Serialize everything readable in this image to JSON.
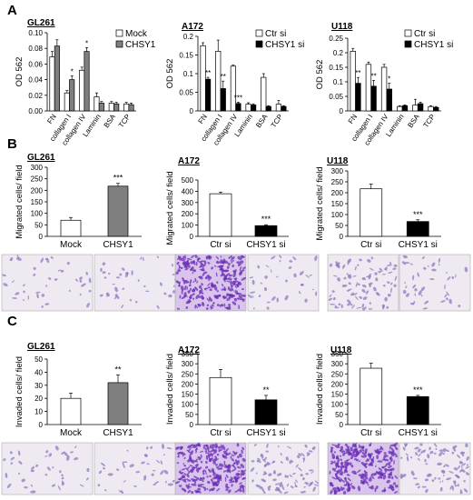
{
  "colors": {
    "white_bar": "#ffffff",
    "gray_bar": "#7f7f7f",
    "black_bar": "#000000",
    "stain_bg": "#eae3ef",
    "stain_light": "#8f7bc0",
    "stain_dark": "#6a2fb6"
  },
  "panel_letters": [
    "A",
    "B",
    "C"
  ],
  "chart_data": [
    {
      "id": "A-GL261",
      "type": "bar",
      "title": "GL261",
      "ylabel": "OD 562",
      "ylim": [
        0,
        0.1
      ],
      "yticks": [
        "0.00",
        "0.02",
        "0.04",
        "0.06",
        "0.08",
        "0.10"
      ],
      "categories": [
        "FN",
        "collagen I",
        "collagen IV",
        "Laminin",
        "BSA",
        "TCP"
      ],
      "series": [
        {
          "name": "Mock",
          "style": "white",
          "values": [
            0.069,
            0.023,
            0.052,
            0.018,
            0.01,
            0.009
          ],
          "errors": [
            0.007,
            0.003,
            0.004,
            0.005,
            0.002,
            0.002
          ]
        },
        {
          "name": "CHSY1",
          "style": "gray",
          "values": [
            0.083,
            0.04,
            0.076,
            0.01,
            0.009,
            0.008
          ],
          "errors": [
            0.008,
            0.005,
            0.005,
            0.002,
            0.002,
            0.002
          ]
        }
      ],
      "stars": [
        "",
        "*",
        "*",
        "",
        "",
        ""
      ],
      "legend": "top-right"
    },
    {
      "id": "A-A172",
      "type": "bar",
      "title": "A172",
      "ylabel": "OD 562",
      "ylim": [
        0,
        0.2
      ],
      "yticks": [
        "0",
        "0.05",
        "0.1",
        "0.15",
        "0.2"
      ],
      "categories": [
        "FN",
        "collagen I",
        "collagen IV",
        "Laminin",
        "BSA",
        "TCP"
      ],
      "series": [
        {
          "name": "Ctr si",
          "style": "white",
          "values": [
            0.175,
            0.16,
            0.12,
            0.018,
            0.09,
            0.018
          ],
          "errors": [
            0.008,
            0.03,
            0.003,
            0.004,
            0.01,
            0.01
          ]
        },
        {
          "name": "CHSY1 si",
          "style": "black",
          "values": [
            0.085,
            0.06,
            0.02,
            0.016,
            0.012,
            0.012
          ],
          "errors": [
            0.005,
            0.02,
            0.003,
            0.003,
            0.002,
            0.002
          ]
        }
      ],
      "stars": [
        "**",
        "**",
        "***",
        "",
        "",
        ""
      ],
      "legend": "top-right"
    },
    {
      "id": "A-U118",
      "type": "bar",
      "title": "U118",
      "ylabel": "OD 562",
      "ylim": [
        0,
        0.25
      ],
      "yticks": [
        "0",
        "0.05",
        "0.1",
        "0.15",
        "0.2",
        "0.25"
      ],
      "categories": [
        "FN",
        "collagen I",
        "collagen IV",
        "Laminin",
        "BSA",
        "TCP"
      ],
      "series": [
        {
          "name": "Ctr si",
          "style": "white",
          "values": [
            0.205,
            0.16,
            0.15,
            0.015,
            0.02,
            0.015
          ],
          "errors": [
            0.01,
            0.008,
            0.01,
            0.003,
            0.02,
            0.003
          ]
        },
        {
          "name": "CHSY1 si",
          "style": "black",
          "values": [
            0.095,
            0.085,
            0.075,
            0.018,
            0.025,
            0.012
          ],
          "errors": [
            0.02,
            0.02,
            0.02,
            0.003,
            0.005,
            0.003
          ]
        }
      ],
      "stars": [
        "**",
        "**",
        "*",
        "",
        "",
        ""
      ],
      "legend": "top-right"
    },
    {
      "id": "B-GL261",
      "type": "bar",
      "title": "GL261",
      "ylabel": "Migrated cells/ field",
      "ylim": [
        0,
        300
      ],
      "yticks": [
        "0",
        "50",
        "100",
        "150",
        "200",
        "250",
        "300"
      ],
      "categories": [
        "Mock",
        "CHSY1"
      ],
      "values": [
        70,
        218
      ],
      "errors": [
        12,
        12
      ],
      "styles": [
        "white",
        "gray"
      ],
      "stars": [
        "",
        "***"
      ]
    },
    {
      "id": "B-A172",
      "type": "bar",
      "title": "A172",
      "ylabel": "Migrated cells/ field",
      "ylim": [
        0,
        500
      ],
      "yticks": [
        "0",
        "100",
        "200",
        "300",
        "400",
        "500"
      ],
      "categories": [
        "Ctr si",
        "CHSY1 si"
      ],
      "values": [
        378,
        95
      ],
      "errors": [
        15,
        8
      ],
      "styles": [
        "white",
        "black"
      ],
      "stars": [
        "",
        "***"
      ]
    },
    {
      "id": "B-U118",
      "type": "bar",
      "title": "U118",
      "ylabel": "Migrated cells/ field",
      "ylim": [
        0,
        300
      ],
      "yticks": [
        "0",
        "50",
        "100",
        "150",
        "200",
        "250",
        "300"
      ],
      "categories": [
        "Ctr si",
        "CHSY1 si"
      ],
      "values": [
        218,
        68
      ],
      "errors": [
        22,
        8
      ],
      "styles": [
        "white",
        "black"
      ],
      "stars": [
        "",
        "***"
      ]
    },
    {
      "id": "C-GL261",
      "type": "bar",
      "title": "GL261",
      "ylabel": "Invaded cells/ field",
      "ylim": [
        0,
        50
      ],
      "yticks": [
        "0",
        "10",
        "20",
        "30",
        "40",
        "50"
      ],
      "categories": [
        "Mock",
        "CHSY1"
      ],
      "values": [
        20,
        32
      ],
      "errors": [
        4,
        6
      ],
      "styles": [
        "white",
        "gray"
      ],
      "stars": [
        "",
        "**"
      ]
    },
    {
      "id": "C-A172",
      "type": "bar",
      "title": "A172",
      "ylabel": "Invaded cells/ field",
      "ylim": [
        0,
        350
      ],
      "yticks": [
        "0",
        "50",
        "100",
        "150",
        "200",
        "250",
        "300",
        "350"
      ],
      "categories": [
        "Ctr si",
        "CHSY1 si"
      ],
      "values": [
        232,
        122
      ],
      "errors": [
        40,
        22
      ],
      "styles": [
        "white",
        "black"
      ],
      "stars": [
        "",
        "**"
      ]
    },
    {
      "id": "C-U118",
      "type": "bar",
      "title": "U118",
      "ylabel": "Invaded cells/ field",
      "ylim": [
        0,
        350
      ],
      "yticks": [
        "0",
        "50",
        "100",
        "150",
        "200",
        "250",
        "300",
        "350"
      ],
      "categories": [
        "Ctr si",
        "CHSY1 si"
      ],
      "values": [
        278,
        138
      ],
      "errors": [
        25,
        6
      ],
      "styles": [
        "white",
        "black"
      ],
      "stars": [
        "",
        "***"
      ]
    }
  ],
  "micrographs": [
    {
      "row": "B",
      "col": 0,
      "density": [
        "light",
        "light"
      ]
    },
    {
      "row": "B",
      "col": 1,
      "density": [
        "dense",
        "light"
      ]
    },
    {
      "row": "B",
      "col": 2,
      "density": [
        "medium",
        "light"
      ]
    },
    {
      "row": "C",
      "col": 0,
      "density": [
        "light",
        "light"
      ]
    },
    {
      "row": "C",
      "col": 1,
      "density": [
        "dense",
        "medium"
      ]
    },
    {
      "row": "C",
      "col": 2,
      "density": [
        "dense",
        "medium"
      ]
    }
  ]
}
